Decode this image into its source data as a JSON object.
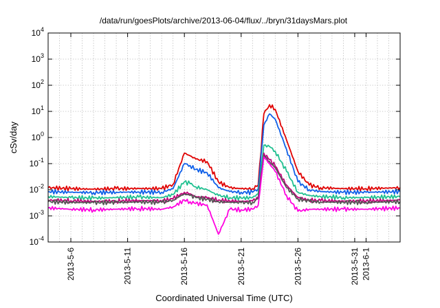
{
  "chart_data": {
    "type": "line",
    "title": "/data/run/goesPlots/archive/2013-06-04/flux/../bryn/31daysMars.plot",
    "xlabel": "Coordinated Universal Time (UTC)",
    "ylabel": "cSv/day",
    "y_scale": "log",
    "ylim": [
      0.0001,
      10000
    ],
    "xlim": [
      "2013-05-04",
      "2013-06-04"
    ],
    "grid": true,
    "legend": "none",
    "y_ticks": [
      {
        "label_base": "10",
        "label_exp": "-4"
      },
      {
        "label_base": "10",
        "label_exp": "-3"
      },
      {
        "label_base": "10",
        "label_exp": "-2"
      },
      {
        "label_base": "10",
        "label_exp": "-1"
      },
      {
        "label_base": "10",
        "label_exp": "0"
      },
      {
        "label_base": "10",
        "label_exp": "1"
      },
      {
        "label_base": "10",
        "label_exp": "2"
      },
      {
        "label_base": "10",
        "label_exp": "3"
      },
      {
        "label_base": "10",
        "label_exp": "4"
      }
    ],
    "x_ticks": [
      {
        "label": "2013-5-6",
        "date": "2013-05-06"
      },
      {
        "label": "2013-5-11",
        "date": "2013-05-11"
      },
      {
        "label": "2013-5-16",
        "date": "2013-05-16"
      },
      {
        "label": "2013-5-21",
        "date": "2013-05-21"
      },
      {
        "label": "2013-5-26",
        "date": "2013-05-26"
      },
      {
        "label": "2013-5-31",
        "date": "2013-05-31"
      },
      {
        "label": "2013-6-1",
        "date": "2013-06-01"
      }
    ],
    "series": [
      {
        "color": "#e00000",
        "x": [
          "2013-05-04",
          "2013-05-06",
          "2013-05-08",
          "2013-05-10",
          "2013-05-12",
          "2013-05-14",
          "2013-05-15",
          "2013-05-16",
          "2013-05-16T12",
          "2013-05-17",
          "2013-05-18",
          "2013-05-19",
          "2013-05-20",
          "2013-05-21",
          "2013-05-22",
          "2013-05-22T12",
          "2013-05-23",
          "2013-05-23T12",
          "2013-05-24",
          "2013-05-25",
          "2013-05-26",
          "2013-05-27",
          "2013-05-28",
          "2013-05-30",
          "2013-06-01",
          "2013-06-04"
        ],
        "values": [
          0.012,
          0.011,
          0.0105,
          0.011,
          0.0112,
          0.011,
          0.016,
          0.25,
          0.2,
          0.15,
          0.12,
          0.02,
          0.012,
          0.011,
          0.011,
          0.015,
          8,
          18,
          12,
          0.8,
          0.05,
          0.015,
          0.012,
          0.011,
          0.011,
          0.012
        ]
      },
      {
        "color": "#1060e8",
        "x": [
          "2013-05-04",
          "2013-05-06",
          "2013-05-08",
          "2013-05-10",
          "2013-05-12",
          "2013-05-14",
          "2013-05-15",
          "2013-05-16",
          "2013-05-16T12",
          "2013-05-17",
          "2013-05-18",
          "2013-05-19",
          "2013-05-20",
          "2013-05-21",
          "2013-05-22",
          "2013-05-22T12",
          "2013-05-23",
          "2013-05-23T12",
          "2013-05-24",
          "2013-05-25",
          "2013-05-26",
          "2013-05-27",
          "2013-05-28",
          "2013-05-30",
          "2013-06-01",
          "2013-06-04"
        ],
        "values": [
          0.0085,
          0.008,
          0.0078,
          0.008,
          0.0082,
          0.008,
          0.011,
          0.1,
          0.085,
          0.06,
          0.045,
          0.012,
          0.0085,
          0.008,
          0.008,
          0.011,
          3,
          8,
          5,
          0.35,
          0.02,
          0.01,
          0.0085,
          0.008,
          0.008,
          0.0085
        ]
      },
      {
        "color": "#20c090",
        "x": [
          "2013-05-04",
          "2013-05-06",
          "2013-05-08",
          "2013-05-10",
          "2013-05-12",
          "2013-05-14",
          "2013-05-15",
          "2013-05-16",
          "2013-05-16T12",
          "2013-05-17",
          "2013-05-18",
          "2013-05-19",
          "2013-05-20",
          "2013-05-21",
          "2013-05-22",
          "2013-05-22T12",
          "2013-05-23",
          "2013-05-23T12",
          "2013-05-24",
          "2013-05-25",
          "2013-05-26",
          "2013-05-27",
          "2013-05-28",
          "2013-05-30",
          "2013-06-01",
          "2013-06-04"
        ],
        "values": [
          0.0055,
          0.005,
          0.0048,
          0.005,
          0.0052,
          0.005,
          0.0065,
          0.02,
          0.017,
          0.013,
          0.01,
          0.006,
          0.005,
          0.0048,
          0.005,
          0.007,
          0.5,
          0.45,
          0.3,
          0.05,
          0.008,
          0.006,
          0.0055,
          0.005,
          0.005,
          0.0055
        ]
      },
      {
        "color": "#c0007a",
        "x": [
          "2013-05-04",
          "2013-05-06",
          "2013-05-08",
          "2013-05-10",
          "2013-05-12",
          "2013-05-14",
          "2013-05-15",
          "2013-05-16",
          "2013-05-16T12",
          "2013-05-17",
          "2013-05-18",
          "2013-05-19",
          "2013-05-20",
          "2013-05-21",
          "2013-05-22",
          "2013-05-22T12",
          "2013-05-23",
          "2013-05-23T12",
          "2013-05-24",
          "2013-05-25",
          "2013-05-26",
          "2013-05-27",
          "2013-05-28",
          "2013-05-30",
          "2013-06-01",
          "2013-06-04"
        ],
        "values": [
          0.004,
          0.0038,
          0.0036,
          0.0037,
          0.0039,
          0.0037,
          0.0045,
          0.008,
          0.007,
          0.0055,
          0.0048,
          0.004,
          0.0037,
          0.0036,
          0.0037,
          0.005,
          0.25,
          0.14,
          0.08,
          0.015,
          0.005,
          0.004,
          0.0038,
          0.0037,
          0.0037,
          0.004
        ]
      },
      {
        "color": "#555555",
        "x": [
          "2013-05-04",
          "2013-05-06",
          "2013-05-08",
          "2013-05-10",
          "2013-05-12",
          "2013-05-14",
          "2013-05-15",
          "2013-05-16",
          "2013-05-16T12",
          "2013-05-17",
          "2013-05-18",
          "2013-05-19",
          "2013-05-20",
          "2013-05-21",
          "2013-05-22",
          "2013-05-22T12",
          "2013-05-23",
          "2013-05-23T12",
          "2013-05-24",
          "2013-05-25",
          "2013-05-26",
          "2013-05-27",
          "2013-05-28",
          "2013-05-30",
          "2013-06-01",
          "2013-06-04"
        ],
        "values": [
          0.0035,
          0.0033,
          0.0032,
          0.0033,
          0.0034,
          0.0033,
          0.004,
          0.007,
          0.006,
          0.005,
          0.0043,
          0.0035,
          0.0033,
          0.0032,
          0.0033,
          0.0045,
          0.2,
          0.12,
          0.07,
          0.012,
          0.0045,
          0.0036,
          0.0034,
          0.0033,
          0.0033,
          0.0035
        ]
      },
      {
        "color": "#ff00e0",
        "x": [
          "2013-05-04",
          "2013-05-06",
          "2013-05-08",
          "2013-05-10",
          "2013-05-12",
          "2013-05-14",
          "2013-05-15",
          "2013-05-16",
          "2013-05-16T12",
          "2013-05-17",
          "2013-05-18",
          "2013-05-19",
          "2013-05-20",
          "2013-05-21",
          "2013-05-22",
          "2013-05-22T12",
          "2013-05-23",
          "2013-05-23T12",
          "2013-05-24",
          "2013-05-25",
          "2013-05-26",
          "2013-05-27",
          "2013-05-28",
          "2013-05-30",
          "2013-06-01",
          "2013-06-04"
        ],
        "values": [
          0.002,
          0.0018,
          0.0017,
          0.0018,
          0.0019,
          0.0018,
          0.0022,
          0.004,
          0.0035,
          0.003,
          0.0026,
          0.0002,
          0.0018,
          0.0017,
          0.0018,
          0.0025,
          0.18,
          0.1,
          0.05,
          0.006,
          0.0015,
          0.0018,
          0.0018,
          0.0018,
          0.0018,
          0.002
        ]
      }
    ]
  }
}
